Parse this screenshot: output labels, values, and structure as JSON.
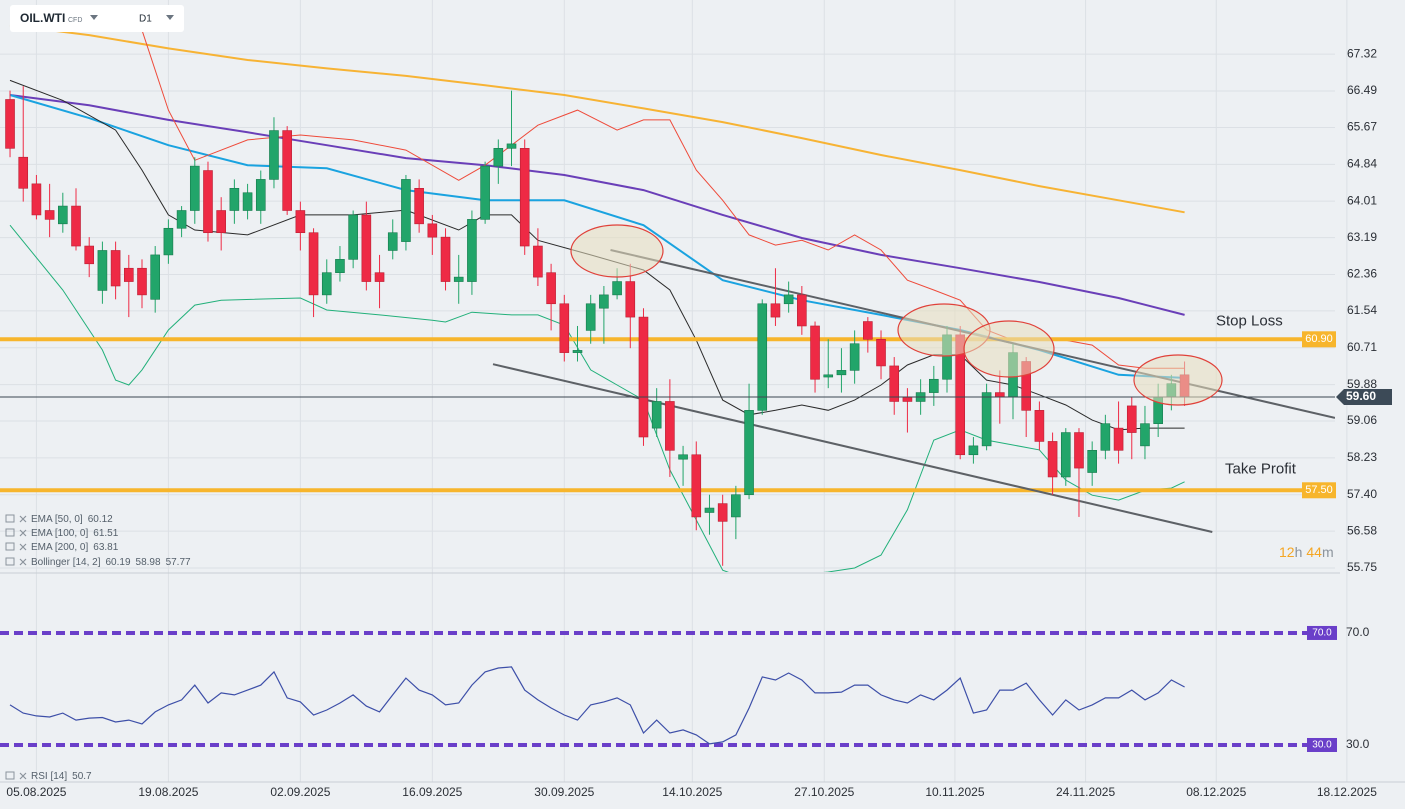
{
  "header": {
    "symbol": "OIL.WTI",
    "badge": "CFD",
    "timeframe": "D1"
  },
  "chart_data": [
    {
      "type": "candlestick",
      "colors": {
        "up": "#22a56a",
        "down": "#ee2a45",
        "grid": "#dce0e5"
      },
      "xlim": [
        -0.76,
        100.4
      ],
      "xticks": [
        {
          "value": 2,
          "label": "05.08.2025"
        },
        {
          "value": 12,
          "label": "19.08.2025"
        },
        {
          "value": 22,
          "label": "02.09.2025"
        },
        {
          "value": 32,
          "label": "16.09.2025"
        },
        {
          "value": 42,
          "label": "30.09.2025"
        },
        {
          "value": 51.7,
          "label": "14.10.2025"
        },
        {
          "value": 61.7,
          "label": "27.10.2025"
        },
        {
          "value": 71.6,
          "label": "10.11.2025"
        },
        {
          "value": 81.5,
          "label": "24.11.2025"
        },
        {
          "value": 91.4,
          "label": "08.12.2025"
        },
        {
          "value": 101.3,
          "label": "18.12.2025"
        }
      ],
      "ylim": [
        55.66,
        68.54
      ],
      "yticks": [
        67.32,
        66.49,
        65.67,
        64.84,
        64.01,
        63.19,
        62.36,
        61.54,
        60.71,
        59.88,
        59.06,
        58.23,
        {
          "value": 57.4,
          "label": "57.40"
        },
        56.58,
        55.75
      ],
      "ohlc": {
        "open": [
          66.3,
          65.0,
          64.4,
          63.8,
          63.5,
          63.9,
          63.0,
          62.0,
          62.9,
          62.5,
          62.5,
          61.8,
          62.8,
          63.4,
          63.8,
          64.7,
          63.8,
          63.8,
          63.8,
          63.8,
          64.5,
          65.6,
          63.8,
          63.3,
          61.9,
          62.4,
          62.7,
          63.7,
          62.4,
          62.9,
          63.1,
          64.3,
          63.5,
          63.2,
          62.2,
          62.2,
          63.6,
          64.8,
          65.2,
          65.2,
          63.0,
          62.4,
          61.7,
          60.6,
          61.1,
          61.6,
          61.9,
          62.2,
          61.4,
          58.9,
          59.5,
          58.2,
          58.3,
          57.0,
          57.2,
          56.9,
          57.4,
          59.3,
          61.7,
          61.7,
          61.9,
          61.2,
          60.05,
          60.1,
          60.2,
          61.3,
          60.9,
          60.3,
          59.6,
          59.5,
          59.7,
          60.0,
          61.0,
          58.3,
          58.5,
          59.7,
          59.6,
          60.4,
          59.3,
          58.6,
          57.8,
          58.8,
          57.9,
          58.4,
          58.9,
          59.4,
          58.5,
          59.0,
          59.6,
          60.1
        ],
        "high": [
          66.5,
          66.6,
          64.6,
          64.4,
          64.2,
          64.3,
          63.2,
          63.1,
          63.1,
          62.8,
          62.7,
          63.0,
          63.6,
          63.9,
          65.0,
          64.9,
          64.1,
          64.5,
          64.4,
          64.7,
          65.9,
          65.7,
          64.0,
          63.4,
          62.7,
          63.0,
          63.8,
          64.0,
          62.8,
          63.6,
          64.6,
          64.5,
          63.7,
          63.4,
          62.8,
          63.8,
          64.9,
          65.4,
          66.5,
          65.4,
          63.4,
          62.6,
          61.9,
          61.2,
          61.9,
          62.1,
          62.5,
          62.6,
          61.6,
          59.8,
          60.0,
          58.5,
          58.6,
          57.4,
          57.4,
          57.6,
          59.9,
          61.8,
          62.5,
          62.2,
          62.1,
          61.3,
          60.9,
          60.7,
          61.1,
          61.4,
          61.1,
          60.5,
          59.8,
          60.0,
          60.3,
          61.2,
          61.2,
          58.7,
          59.9,
          60.2,
          60.8,
          60.5,
          59.5,
          58.8,
          58.9,
          58.9,
          58.6,
          59.2,
          59.5,
          59.6,
          59.4,
          59.9,
          60.1,
          60.4
        ],
        "low": [
          65.0,
          64.0,
          63.6,
          63.2,
          63.3,
          62.9,
          62.3,
          61.7,
          61.8,
          61.4,
          61.6,
          61.5,
          62.6,
          63.2,
          63.5,
          63.1,
          62.9,
          63.5,
          63.6,
          63.5,
          64.3,
          63.7,
          62.9,
          61.4,
          61.7,
          62.2,
          62.5,
          62.0,
          61.6,
          62.7,
          62.9,
          63.3,
          62.8,
          62.0,
          61.7,
          61.9,
          63.5,
          64.4,
          64.8,
          62.8,
          62.1,
          61.1,
          60.4,
          60.4,
          60.8,
          60.8,
          61.8,
          60.7,
          58.5,
          58.7,
          57.8,
          57.6,
          56.6,
          56.5,
          55.8,
          56.4,
          57.3,
          59.2,
          61.2,
          61.5,
          61.0,
          59.7,
          59.8,
          59.7,
          59.9,
          60.6,
          60.0,
          59.2,
          58.8,
          59.2,
          59.4,
          59.7,
          58.2,
          58.1,
          58.4,
          59.0,
          59.1,
          58.7,
          58.4,
          57.4,
          57.6,
          56.9,
          57.6,
          58.2,
          58.1,
          58.2,
          58.2,
          58.7,
          59.3,
          59.4
        ],
        "close": [
          65.2,
          64.3,
          63.7,
          63.6,
          63.9,
          63.0,
          62.6,
          62.9,
          62.1,
          62.2,
          61.9,
          62.8,
          63.4,
          63.8,
          64.8,
          63.3,
          63.3,
          64.3,
          64.2,
          64.5,
          65.6,
          63.8,
          63.3,
          61.9,
          62.4,
          62.7,
          63.7,
          62.2,
          62.2,
          63.3,
          64.5,
          63.5,
          63.2,
          62.2,
          62.3,
          63.6,
          64.8,
          65.2,
          65.3,
          63.0,
          62.3,
          61.7,
          60.6,
          60.65,
          61.7,
          61.9,
          62.2,
          61.4,
          58.7,
          59.5,
          58.4,
          58.3,
          56.9,
          57.1,
          56.8,
          57.4,
          59.3,
          61.7,
          61.4,
          61.9,
          61.2,
          60.0,
          60.1,
          60.2,
          60.8,
          60.9,
          60.3,
          59.5,
          59.5,
          59.7,
          60.0,
          61.0,
          58.3,
          58.5,
          59.7,
          59.6,
          60.6,
          59.3,
          58.6,
          57.8,
          58.8,
          58.0,
          58.4,
          59.0,
          58.4,
          58.8,
          59.0,
          59.6,
          59.9,
          59.6
        ]
      },
      "overlays": [
        {
          "name": "EMA [200, 0]",
          "last": 63.81,
          "color": "#f7b334",
          "x": [
            0,
            6,
            12,
            18,
            24,
            30,
            36,
            42,
            48,
            54,
            60,
            66,
            72,
            78,
            84,
            89
          ],
          "values": [
            67.97,
            67.75,
            67.45,
            67.19,
            67.0,
            66.83,
            66.62,
            66.4,
            66.1,
            65.79,
            65.43,
            65.05,
            64.71,
            64.35,
            64.03,
            63.76
          ]
        },
        {
          "name": "EMA [100, 0]",
          "last": 61.51,
          "color": "#6a3fb8",
          "x": [
            0,
            6,
            12,
            18,
            24,
            30,
            36,
            42,
            48,
            54,
            60,
            66,
            72,
            78,
            84,
            89
          ],
          "values": [
            66.4,
            66.17,
            65.84,
            65.56,
            65.27,
            64.98,
            64.82,
            64.6,
            64.26,
            63.7,
            63.18,
            62.8,
            62.5,
            62.19,
            61.83,
            61.45
          ]
        },
        {
          "name": "EMA [50, 0]",
          "last": 60.12,
          "color": "#1aa3e0",
          "x": [
            0,
            6,
            12,
            18,
            24,
            30,
            36,
            42,
            48,
            54,
            60,
            66,
            72,
            78,
            84,
            89
          ],
          "values": [
            66.4,
            65.88,
            65.27,
            64.82,
            64.75,
            64.26,
            64.03,
            64.03,
            63.47,
            62.23,
            61.78,
            61.45,
            61.11,
            60.66,
            60.1,
            60.03
          ]
        }
      ],
      "bollinger": {
        "name": "Bollinger [14, 2]",
        "bands": [
          {
            "last": 60.19,
            "color": "#ee4a3a",
            "x": [
              10,
              12,
              14,
              18,
              22,
              26,
              30,
              34,
              36,
              40,
              43,
              46,
              48,
              50,
              52,
              54,
              56,
              58,
              60,
              62,
              64,
              66,
              68,
              70,
              72,
              74,
              76,
              78,
              80,
              82,
              84,
              86,
              89
            ],
            "values": [
              67.86,
              66.06,
              64.93,
              65.39,
              65.5,
              65.39,
              65.16,
              64.48,
              64.82,
              65.72,
              66.06,
              65.61,
              65.84,
              65.84,
              64.71,
              64.03,
              63.25,
              63.02,
              63.13,
              62.91,
              63.25,
              62.91,
              62.23,
              62.01,
              61.78,
              61.11,
              60.88,
              60.88,
              60.88,
              60.77,
              60.32,
              60.25,
              60.25
            ]
          },
          {
            "last": 58.98,
            "color": "#2a2a2a",
            "x": [
              0,
              4,
              8,
              10,
              12,
              14,
              18,
              22,
              26,
              30,
              34,
              36,
              38,
              40,
              44,
              48,
              50,
              52,
              54,
              56,
              58,
              60,
              62,
              64,
              66,
              68,
              70,
              72,
              74,
              76,
              78,
              80,
              82,
              84,
              86,
              89
            ],
            "values": [
              66.73,
              66.28,
              65.61,
              64.71,
              63.7,
              63.36,
              63.25,
              63.7,
              63.7,
              63.81,
              63.36,
              63.7,
              63.7,
              63.13,
              62.8,
              62.46,
              62.01,
              60.88,
              59.53,
              59.2,
              59.3,
              59.42,
              59.3,
              59.53,
              59.87,
              60.32,
              60.55,
              60.55,
              59.98,
              59.87,
              59.65,
              59.42,
              59.08,
              58.86,
              58.9,
              58.9
            ]
          },
          {
            "last": 57.77,
            "color": "#22b07a",
            "x": [
              0,
              4,
              7,
              8,
              9,
              10,
              12,
              14,
              16,
              22,
              24,
              28,
              32,
              33,
              35,
              38,
              40,
              42,
              44,
              46,
              48,
              50,
              52,
              54,
              56,
              62,
              64,
              66,
              68,
              70,
              72,
              74,
              76,
              78,
              80,
              82,
              84,
              86,
              88,
              89
            ],
            "values": [
              63.47,
              62.01,
              60.66,
              59.98,
              59.87,
              60.21,
              61.11,
              61.67,
              61.78,
              61.83,
              61.56,
              61.45,
              61.33,
              61.29,
              61.51,
              61.45,
              61.45,
              61.22,
              60.21,
              59.87,
              59.53,
              57.96,
              56.83,
              55.7,
              55.48,
              55.66,
              55.75,
              56.04,
              57.06,
              58.63,
              58.86,
              58.63,
              58.52,
              58.41,
              57.73,
              57.39,
              57.28,
              57.5,
              57.55,
              57.69
            ]
          }
        ]
      },
      "trendlines": [
        {
          "color": "#5d6166",
          "x": [
            45.5,
            100.4
          ],
          "values": [
            62.91,
            59.13
          ]
        },
        {
          "color": "#5d6166",
          "x": [
            36.6,
            91.1
          ],
          "values": [
            60.34,
            56.56
          ]
        }
      ],
      "levels": [
        {
          "name": "Stop Loss",
          "price": {
            "value": 60.9,
            "label": "60.90"
          },
          "color": "#f7b52c"
        },
        {
          "name": "Take Profit",
          "price": {
            "value": 57.5,
            "label": "57.50"
          },
          "color": "#f7b52c"
        }
      ],
      "current_price": {
        "value": 59.6,
        "label": "59.60"
      },
      "countdown": {
        "hours": "12",
        "hours_unit": "h",
        "minutes": "44",
        "minutes_unit": "m"
      }
    },
    {
      "type": "line",
      "name": "RSI [14]",
      "last": 50.7,
      "color": "#3d4fa8",
      "level_color": "#6a3fc9",
      "ylim": [
        17.5,
        90.7
      ],
      "yticks": [
        {
          "value": 70,
          "label": "70.0"
        },
        {
          "value": 30,
          "label": "30.0"
        }
      ],
      "values": [
        44.3,
        41.4,
        40.4,
        40,
        41.4,
        38.9,
        39.6,
        39.8,
        38.2,
        38.9,
        37.5,
        41.8,
        44.3,
        46.1,
        51.4,
        45,
        48.6,
        47.9,
        49.6,
        51.4,
        56.1,
        46.8,
        45.4,
        40.7,
        42.5,
        45,
        47.9,
        43.9,
        41.8,
        47.9,
        53.9,
        49.6,
        47.9,
        44.3,
        45,
        51.4,
        56.1,
        57.5,
        57.9,
        49.6,
        46.1,
        43.2,
        40.7,
        38.9,
        44.3,
        45.4,
        46.8,
        44.3,
        34.3,
        38.9,
        34.3,
        35.4,
        33.6,
        30.4,
        31.1,
        33.6,
        43.2,
        54.3,
        53.2,
        55.7,
        53.2,
        48.6,
        48.6,
        48.9,
        51.4,
        51.4,
        47.9,
        46.1,
        45,
        47.9,
        46.1,
        49.6,
        53.9,
        41.4,
        42.5,
        49.6,
        49.6,
        52.1,
        46.1,
        40.7,
        46.1,
        42.5,
        44.3,
        46.8,
        46.8,
        49.6,
        46.1,
        48.6,
        53.2,
        50.7
      ]
    }
  ]
}
